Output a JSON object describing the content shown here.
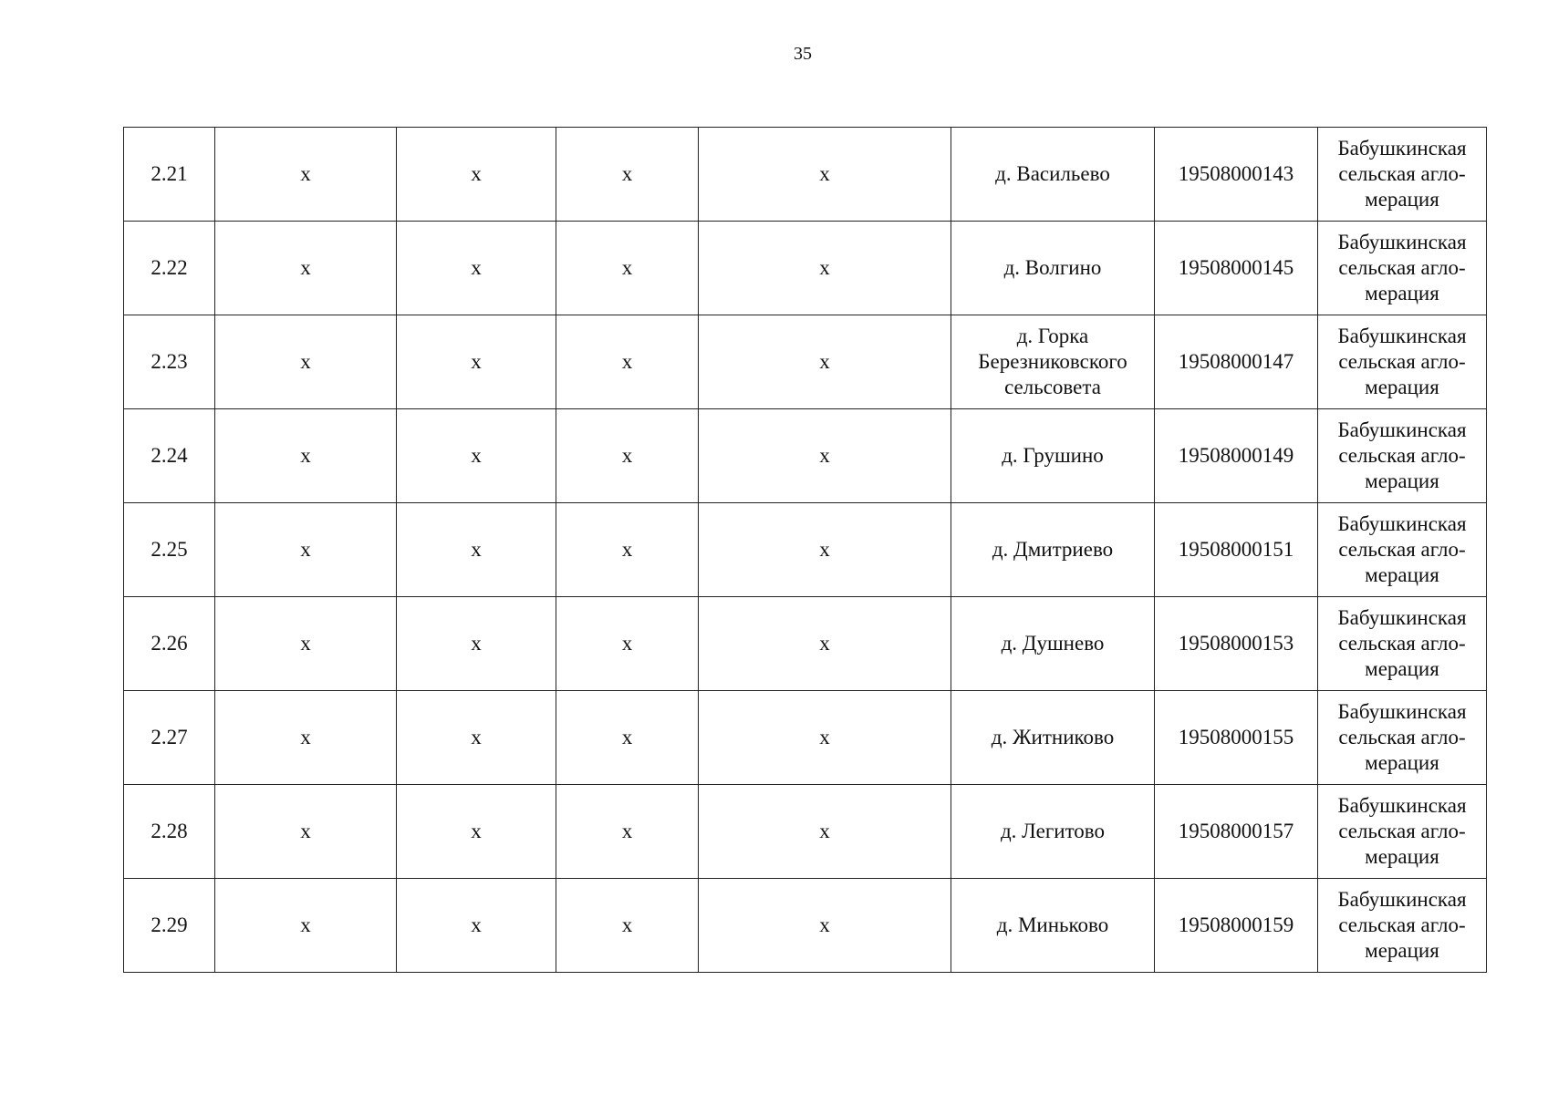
{
  "page_number": "35",
  "rows": [
    {
      "num": "2.21",
      "c1": "х",
      "c2": "х",
      "c3": "х",
      "c4": "х",
      "place": "д. Васильево",
      "code": "19508000143",
      "agglo": "Бабушкинская сельская агло-мерация"
    },
    {
      "num": "2.22",
      "c1": "х",
      "c2": "х",
      "c3": "х",
      "c4": "х",
      "place": "д. Волгино",
      "code": "19508000145",
      "agglo": "Бабушкинская сельская агло-мерация"
    },
    {
      "num": "2.23",
      "c1": "х",
      "c2": "х",
      "c3": "х",
      "c4": "х",
      "place": "д. Горка Березниковского сельсовета",
      "code": "19508000147",
      "agglo": "Бабушкинская сельская агло-мерация"
    },
    {
      "num": "2.24",
      "c1": "х",
      "c2": "х",
      "c3": "х",
      "c4": "х",
      "place": "д. Грушино",
      "code": "19508000149",
      "agglo": "Бабушкинская сельская агло-мерация"
    },
    {
      "num": "2.25",
      "c1": "х",
      "c2": "х",
      "c3": "х",
      "c4": "х",
      "place": "д. Дмитриево",
      "code": "19508000151",
      "agglo": "Бабушкинская сельская агло-мерация"
    },
    {
      "num": "2.26",
      "c1": "х",
      "c2": "х",
      "c3": "х",
      "c4": "х",
      "place": "д. Душнево",
      "code": "19508000153",
      "agglo": "Бабушкинская сельская агло-мерация"
    },
    {
      "num": "2.27",
      "c1": "х",
      "c2": "х",
      "c3": "х",
      "c4": "х",
      "place": "д. Житниково",
      "code": "19508000155",
      "agglo": "Бабушкинская сельская агло-мерация"
    },
    {
      "num": "2.28",
      "c1": "х",
      "c2": "х",
      "c3": "х",
      "c4": "х",
      "place": "д. Легитово",
      "code": "19508000157",
      "agglo": "Бабушкинская сельская агло-мерация"
    },
    {
      "num": "2.29",
      "c1": "х",
      "c2": "х",
      "c3": "х",
      "c4": "х",
      "place": "д. Миньково",
      "code": "19508000159",
      "agglo": "Бабушкинская сельская агло-мерация"
    }
  ]
}
